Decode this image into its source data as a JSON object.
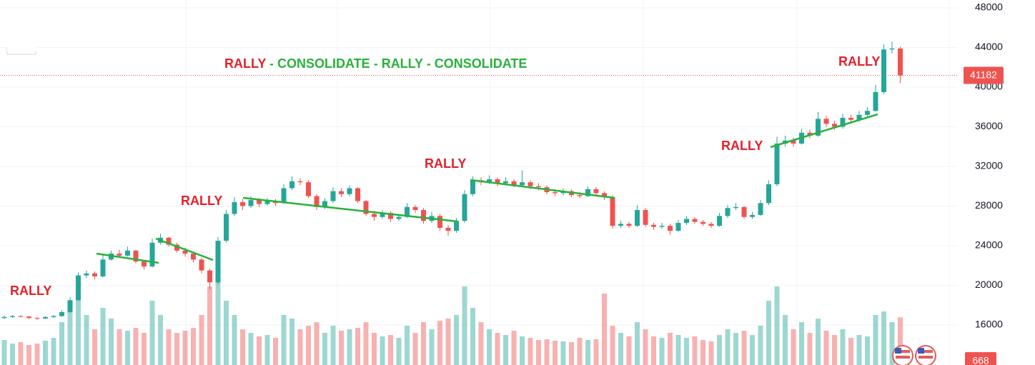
{
  "chart_data": {
    "type": "candlestick",
    "headline": [
      {
        "text": "RALLY",
        "color": "#e4202b"
      },
      {
        "text": " - CONSOLIDATE - RALLY - CONSOLIDATE",
        "color": "#27b23a"
      }
    ],
    "annotations": [
      "RALLY",
      "RALLY",
      "RALLY",
      "RALLY",
      "RALLY"
    ],
    "annotation_color": "#e4202b",
    "up_color": "#26a69a",
    "down_color": "#ef5350",
    "ylim": [
      11960,
      48790
    ],
    "yticks": [
      16000,
      20000,
      24000,
      28000,
      32000,
      36000,
      40000,
      44000,
      48000
    ],
    "grid": true,
    "open": [
      16700,
      16800,
      16900,
      16850,
      16700,
      16650,
      16800,
      16900,
      17300,
      18500,
      21000,
      21200,
      20900,
      22600,
      23200,
      23000,
      23500,
      22400,
      21900,
      24300,
      24800,
      24100,
      23500,
      23200,
      22600,
      21500,
      20300,
      24500,
      27200,
      28400,
      28000,
      28600,
      28200,
      28500,
      28300,
      29800,
      30500,
      30400,
      29000,
      27900,
      28500,
      29500,
      29200,
      29800,
      28500,
      27200,
      26900,
      27300,
      26700,
      26900,
      27900,
      27600,
      26500,
      27000,
      25800,
      25500,
      26500,
      29200,
      30600,
      30400,
      30700,
      30300,
      30500,
      30100,
      30400,
      30000,
      29900,
      29400,
      29300,
      29500,
      29100,
      29000,
      29700,
      29300,
      28900,
      26000,
      26200,
      26000,
      27600,
      26100,
      25900,
      26000,
      25500,
      26300,
      26700,
      26400,
      26200,
      26000,
      27000,
      27800,
      27900,
      26900,
      27100,
      28300,
      30200,
      34300,
      34600,
      34300,
      35400,
      35100,
      36800,
      36300,
      36000,
      36900,
      36700,
      37200,
      37600,
      39500,
      43800,
      43900
    ],
    "high": [
      16950,
      17000,
      17000,
      16900,
      16800,
      16900,
      17000,
      17500,
      18800,
      21300,
      21500,
      21400,
      23100,
      23500,
      23600,
      23900,
      23600,
      22500,
      24700,
      25200,
      24900,
      24300,
      23800,
      23400,
      22800,
      21700,
      24900,
      27600,
      28900,
      28700,
      29000,
      28800,
      28800,
      28700,
      30200,
      31000,
      30800,
      30600,
      29200,
      28800,
      29900,
      29800,
      30100,
      29900,
      28600,
      27500,
      27600,
      27500,
      27200,
      28300,
      28100,
      27800,
      27400,
      27200,
      26100,
      26800,
      29600,
      31000,
      30900,
      31100,
      30900,
      30900,
      30700,
      31600,
      30600,
      30300,
      30100,
      29700,
      29800,
      29700,
      29400,
      30000,
      29900,
      29500,
      29100,
      26500,
      26400,
      28100,
      27800,
      26300,
      26300,
      26200,
      26600,
      27000,
      26900,
      26600,
      26400,
      27300,
      28100,
      28300,
      28000,
      27400,
      28600,
      30600,
      35000,
      35100,
      34900,
      35800,
      35700,
      37500,
      37100,
      36600,
      37300,
      37200,
      37600,
      38000,
      40200,
      44300,
      44600,
      44100
    ],
    "low": [
      16600,
      16700,
      16750,
      16600,
      16500,
      16600,
      16700,
      16800,
      17200,
      18400,
      20700,
      20600,
      20800,
      22500,
      22800,
      22900,
      22200,
      21600,
      21800,
      24100,
      23900,
      23300,
      22900,
      22300,
      21200,
      19600,
      20100,
      24300,
      27000,
      27600,
      27800,
      27900,
      28000,
      28000,
      28200,
      29600,
      30100,
      28800,
      27600,
      27700,
      28300,
      28900,
      29000,
      28300,
      27000,
      26500,
      26700,
      26400,
      26500,
      26800,
      27300,
      26200,
      26300,
      25500,
      25000,
      25300,
      26300,
      29000,
      30100,
      30200,
      30000,
      30100,
      29900,
      29900,
      29700,
      29600,
      29200,
      29000,
      29100,
      28900,
      28800,
      28900,
      29100,
      28600,
      25700,
      25800,
      25800,
      25900,
      25900,
      25600,
      25700,
      25100,
      25400,
      26100,
      26200,
      26000,
      25800,
      25900,
      26800,
      27600,
      26700,
      26700,
      27000,
      28100,
      30000,
      34000,
      34000,
      34200,
      34800,
      35000,
      36000,
      35700,
      35800,
      36400,
      36500,
      37000,
      37500,
      39300,
      43400,
      40400
    ],
    "close": [
      16800,
      16900,
      16850,
      16700,
      16650,
      16800,
      16900,
      17300,
      18500,
      21000,
      21200,
      20900,
      22600,
      23200,
      23000,
      23500,
      22400,
      21900,
      24300,
      24800,
      24100,
      23500,
      23200,
      22600,
      21500,
      20300,
      24500,
      27200,
      28400,
      28000,
      28600,
      28200,
      28500,
      28300,
      29800,
      30500,
      30400,
      29000,
      27900,
      28500,
      29500,
      29200,
      29800,
      28500,
      27200,
      26900,
      27300,
      26700,
      26900,
      27900,
      27600,
      26500,
      27000,
      25800,
      25500,
      26500,
      29200,
      30600,
      30400,
      30700,
      30300,
      30500,
      30100,
      30400,
      30000,
      29900,
      29400,
      29300,
      29500,
      29100,
      29000,
      29700,
      29300,
      28900,
      26000,
      26200,
      26000,
      27600,
      26100,
      25900,
      26000,
      25500,
      26300,
      26700,
      26400,
      26200,
      26000,
      27000,
      27800,
      27900,
      26900,
      27100,
      28300,
      30200,
      34300,
      34600,
      34300,
      35400,
      35100,
      36800,
      36300,
      36000,
      36900,
      36700,
      37200,
      37600,
      39500,
      43800,
      43900,
      41182
    ],
    "volume": {
      "vlim": [
        0,
        1500
      ],
      "values": [
        350,
        300,
        320,
        280,
        300,
        340,
        380,
        600,
        900,
        1000,
        700,
        500,
        800,
        650,
        500,
        480,
        520,
        450,
        900,
        700,
        500,
        450,
        480,
        520,
        700,
        1100,
        1300,
        900,
        700,
        500,
        450,
        400,
        420,
        380,
        700,
        650,
        500,
        550,
        600,
        450,
        550,
        480,
        500,
        520,
        600,
        450,
        400,
        420,
        380,
        550,
        450,
        600,
        500,
        620,
        650,
        700,
        1100,
        800,
        600,
        500,
        450,
        420,
        480,
        400,
        380,
        350,
        360,
        340,
        330,
        320,
        380,
        350,
        360,
        1000,
        550,
        450,
        400,
        600,
        500,
        400,
        380,
        450,
        420,
        380,
        400,
        350,
        330,
        420,
        500,
        450,
        480,
        420,
        550,
        900,
        1100,
        700,
        500,
        600,
        450,
        650,
        480,
        420,
        500,
        380,
        420,
        400,
        700,
        750,
        600,
        668
      ]
    }
  }
}
